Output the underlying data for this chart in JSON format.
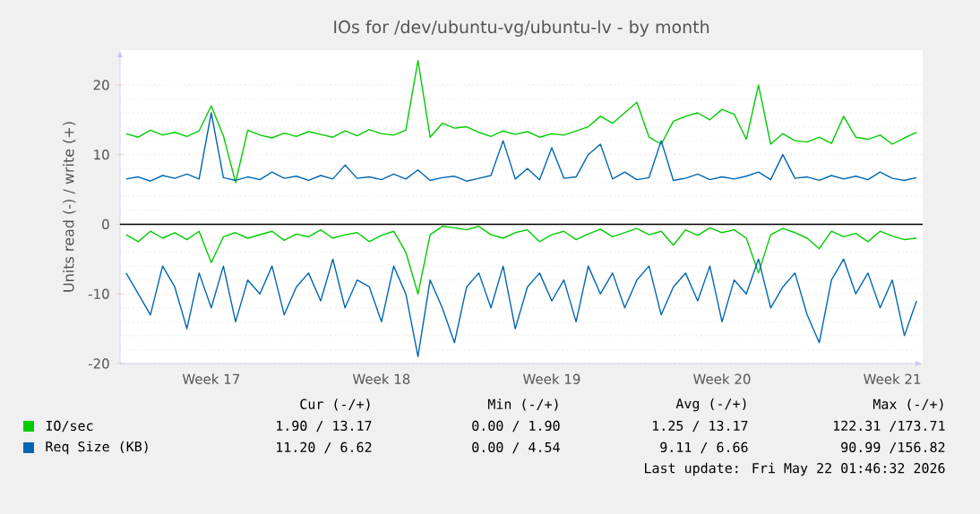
{
  "chart_data": {
    "type": "line",
    "title": "IOs for /dev/ubuntu-vg/ubuntu-lv - by month",
    "ylabel": "Units read (-) / write (+)",
    "categories": [
      null,
      null,
      null,
      null,
      null,
      null,
      null,
      "Week 17",
      null,
      null,
      null,
      null,
      null,
      null,
      null,
      null,
      null,
      null,
      null,
      null,
      null,
      "Week 18",
      null,
      null,
      null,
      null,
      null,
      null,
      null,
      null,
      null,
      null,
      null,
      null,
      null,
      "Week 19",
      null,
      null,
      null,
      null,
      null,
      null,
      null,
      null,
      null,
      null,
      null,
      null,
      null,
      "Week 20",
      null,
      null,
      null,
      null,
      null,
      null,
      null,
      null,
      null,
      null,
      null,
      null,
      null,
      "Week 21",
      null,
      null
    ],
    "series": [
      {
        "name": "IO/sec",
        "color": "#00cc00",
        "values": [
          13,
          12.5,
          13.5,
          12.8,
          13.2,
          12.6,
          13.4,
          17,
          12.7,
          6,
          13.5,
          12.8,
          12.4,
          13.1,
          12.6,
          13.3,
          12.9,
          12.5,
          13.4,
          12.7,
          13.6,
          13,
          12.8,
          13.5,
          23.5,
          12.5,
          14.5,
          13.8,
          14,
          13.2,
          12.6,
          13.4,
          12.9,
          13.3,
          12.5,
          13,
          12.8,
          13.4,
          14,
          15.5,
          14.5,
          16,
          17.5,
          12.5,
          11.5,
          14.8,
          15.5,
          16,
          15,
          16.5,
          15.8,
          12.2,
          20,
          11.5,
          13,
          12,
          11.8,
          12.5,
          11.6,
          15.5,
          12.5,
          12.2,
          12.8,
          11.5,
          12.4,
          13.2
        ]
      },
      {
        "color": "#00cc00",
        "values": [
          -1.5,
          -2.5,
          -1,
          -2,
          -1.2,
          -2.2,
          -1,
          -5.5,
          -1.8,
          -1.2,
          -2,
          -1.5,
          -1,
          -2.3,
          -1.4,
          -1.8,
          -0.8,
          -2,
          -1.5,
          -1.2,
          -2.5,
          -1.6,
          -1,
          -4,
          -10,
          -1.5,
          -0.3,
          -0.5,
          -0.8,
          -0.3,
          -1.5,
          -2,
          -1.2,
          -0.8,
          -2.5,
          -1.5,
          -1,
          -2.2,
          -1.4,
          -0.7,
          -1.8,
          -1.2,
          -0.6,
          -1.5,
          -1,
          -3,
          -0.8,
          -1.6,
          -0.5,
          -1.2,
          -0.8,
          -2,
          -7,
          -1.5,
          -0.6,
          -1.2,
          -2,
          -3.5,
          -1,
          -1.8,
          -1.3,
          -2.5,
          -1,
          -1.7,
          -2.2,
          -2
        ]
      },
      {
        "name": "Req Size (KB)",
        "color": "#0066b3",
        "values": [
          6.5,
          6.8,
          6.2,
          7,
          6.6,
          7.2,
          6.5,
          16,
          6.7,
          6.3,
          6.8,
          6.4,
          7.5,
          6.6,
          6.9,
          6.3,
          7,
          6.5,
          8.5,
          6.6,
          6.8,
          6.4,
          7.2,
          6.5,
          7.8,
          6.3,
          6.7,
          6.9,
          6.2,
          6.6,
          7,
          12,
          6.5,
          8,
          6.4,
          11,
          6.6,
          6.8,
          10,
          11.5,
          6.5,
          7.5,
          6.4,
          6.7,
          12,
          6.3,
          6.6,
          7.2,
          6.4,
          6.8,
          6.5,
          6.9,
          7.5,
          6.4,
          10,
          6.6,
          6.8,
          6.3,
          7,
          6.5,
          6.9,
          6.4,
          7.5,
          6.6,
          6.3,
          6.7
        ]
      },
      {
        "color": "#0066b3",
        "values": [
          -7,
          -10,
          -13,
          -6,
          -9,
          -15,
          -7,
          -12,
          -6,
          -14,
          -8,
          -10,
          -6,
          -13,
          -9,
          -7,
          -11,
          -5,
          -12,
          -8,
          -9,
          -14,
          -6,
          -10,
          -19,
          -8,
          -12,
          -17,
          -9,
          -7,
          -12,
          -6,
          -15,
          -9,
          -7,
          -11,
          -8,
          -14,
          -6,
          -10,
          -7,
          -12,
          -8,
          -6,
          -13,
          -9,
          -7,
          -11,
          -6,
          -14,
          -8,
          -10,
          -5,
          -12,
          -9,
          -7,
          -13,
          -17,
          -8,
          -5,
          -10,
          -7,
          -12,
          -8,
          -16,
          -11
        ]
      }
    ],
    "ylim": [
      -20,
      25
    ],
    "yticks": [
      -20,
      -10,
      0,
      10,
      20
    ],
    "ref_lines": [
      {
        "axis": "y",
        "value": 0,
        "color": "#000000"
      }
    ],
    "grid": "y",
    "legend": "bottom",
    "marker": "none",
    "annotations": [
      "Cur (-/+)",
      "Min (-/+)",
      "Avg (-/+)",
      "Max (-/+)",
      "1.90 / 13.17",
      "0.00 /  1.90",
      "1.25 / 13.17",
      "122.31 /173.71",
      "11.20 /  6.62",
      "0.00 /  4.54",
      "9.11 /  6.66",
      "90.99 /156.82",
      "Last update: Fri May 22 01:46:32 2026"
    ]
  }
}
